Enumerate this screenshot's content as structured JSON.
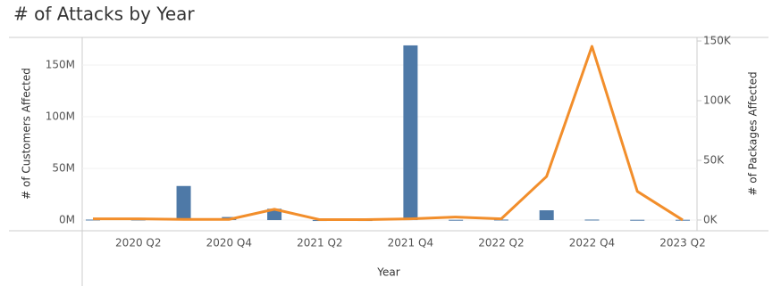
{
  "chart_data": {
    "type": "bar-line",
    "title": "# of Attacks by Year",
    "x_label": "Year",
    "y_label": "# of Customers Affected",
    "y2_label": "# of Packages Affected",
    "categories": [
      null,
      "2020 Q2",
      null,
      "2020 Q4",
      null,
      "2021 Q2",
      null,
      "2021 Q4",
      null,
      "2022 Q2",
      null,
      "2022 Q4",
      null,
      "2023 Q2"
    ],
    "series": [
      {
        "name": "# of Customers Affected",
        "type": "bar",
        "color": "#4e79a7",
        "values": [
          500000,
          500000,
          33000000,
          3000000,
          11000000,
          0,
          0,
          169000000,
          300000,
          500000,
          9500000,
          500000,
          300000,
          300000
        ]
      },
      {
        "name": "# of Packages Affected",
        "type": "line",
        "axis": "y2",
        "color": "#f28e2b",
        "values": [
          1000,
          1000,
          500,
          500,
          9000,
          300,
          300,
          1000,
          2500,
          1000,
          36500,
          145500,
          24000,
          0
        ]
      }
    ],
    "ylim": [
      -10300000,
      176700000
    ],
    "yticks": [
      {
        "value": 0,
        "label": "0M"
      },
      {
        "value": 50000000,
        "label": "50M"
      },
      {
        "value": 100000000,
        "label": "100M"
      },
      {
        "value": 150000000,
        "label": "150M"
      }
    ],
    "y2lim": [
      -9000,
      153000
    ],
    "y2ticks": [
      {
        "value": 0,
        "label": "0K"
      },
      {
        "value": 50000,
        "label": "50K"
      },
      {
        "value": 100000,
        "label": "100K"
      },
      {
        "value": 150000,
        "label": "150K"
      }
    ],
    "grid": true
  }
}
